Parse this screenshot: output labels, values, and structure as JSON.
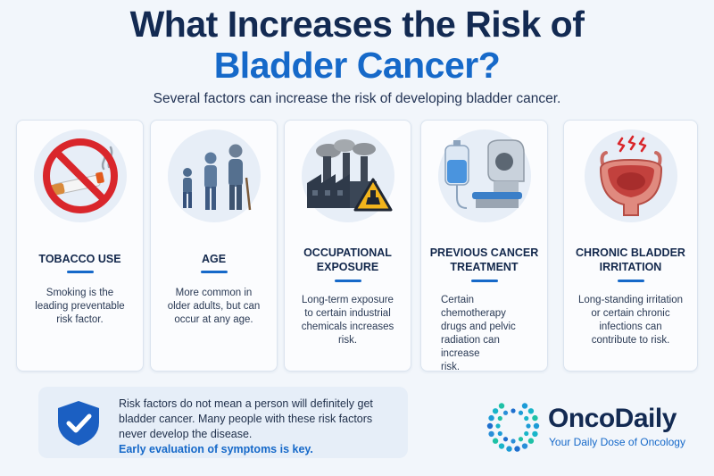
{
  "header": {
    "title_line1": "What Increases the Risk of",
    "title_line2": "Bladder Cancer?",
    "subtitle": "Several factors can increase the risk of developing bladder cancer."
  },
  "cards": [
    {
      "title_lines": [
        "TOBACCO USE"
      ],
      "desc_lines": [
        "Smoking is the",
        "leading preventable",
        "risk factor."
      ],
      "icon": "no-smoking-icon"
    },
    {
      "title_lines": [
        "AGE"
      ],
      "desc_lines": [
        "More common in",
        "older adults, but can",
        "occur at any age."
      ],
      "icon": "age-progression-icon"
    },
    {
      "title_lines": [
        "OCCUPATIONAL",
        "EXPOSURE"
      ],
      "desc_lines": [
        "Long-term exposure",
        "to certain industrial",
        "chemicals increases risk."
      ],
      "icon": "factory-hazard-icon"
    },
    {
      "title_lines": [
        "PREVIOUS CANCER",
        "TREATMENT"
      ],
      "desc_lines": [
        "Certain chemotherapy",
        "drugs and pelvic",
        "radiation can increase",
        "risk."
      ],
      "icon": "iv-radiation-icon"
    },
    {
      "title_lines": [
        "CHRONIC BLADDER",
        "IRRITATION"
      ],
      "desc_lines": [
        "Long-standing irritation",
        "or certain chronic",
        "infections can",
        "contribute to risk."
      ],
      "icon": "irritated-bladder-icon"
    }
  ],
  "note": {
    "lines": [
      "Risk factors do not mean a person will definitely get",
      "bladder cancer. Many people with these risk factors",
      "never develop the disease."
    ],
    "emphasis": "Early evaluation of symptoms is key.",
    "icon": "shield-check-icon"
  },
  "brand": {
    "name": "OncoDaily",
    "tagline": "Your Daily Dose of Oncology",
    "icon": "dotted-circle-logo-icon"
  },
  "colors": {
    "navy": "#132a52",
    "accent": "#1669c9",
    "background": "#f2f6fb"
  }
}
